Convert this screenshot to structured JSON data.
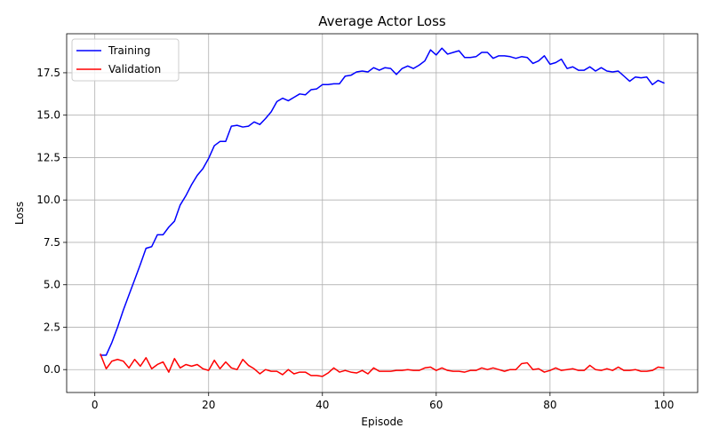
{
  "chart_data": {
    "type": "line",
    "title": "Average Actor Loss",
    "xlabel": "Episode",
    "ylabel": "Loss",
    "xlim": [
      -4.95,
      105.95
    ],
    "ylim": [
      -1.35,
      19.8
    ],
    "xticks": [
      0,
      20,
      40,
      60,
      80,
      100
    ],
    "yticks": [
      0.0,
      2.5,
      5.0,
      7.5,
      10.0,
      12.5,
      15.0,
      17.5
    ],
    "ytick_labels": [
      "0.0",
      "2.5",
      "5.0",
      "7.5",
      "10.0",
      "12.5",
      "15.0",
      "17.5"
    ],
    "grid": true,
    "legend_position": "top-left",
    "x": [
      1,
      2,
      3,
      4,
      5,
      6,
      7,
      8,
      9,
      10,
      11,
      12,
      13,
      14,
      15,
      16,
      17,
      18,
      19,
      20,
      21,
      22,
      23,
      24,
      25,
      26,
      27,
      28,
      29,
      30,
      31,
      32,
      33,
      34,
      35,
      36,
      37,
      38,
      39,
      40,
      41,
      42,
      43,
      44,
      45,
      46,
      47,
      48,
      49,
      50,
      51,
      52,
      53,
      54,
      55,
      56,
      57,
      58,
      59,
      60,
      61,
      62,
      63,
      64,
      65,
      66,
      67,
      68,
      69,
      70,
      71,
      72,
      73,
      74,
      75,
      76,
      77,
      78,
      79,
      80,
      81,
      82,
      83,
      84,
      85,
      86,
      87,
      88,
      89,
      90,
      91,
      92,
      93,
      94,
      95,
      96,
      97,
      98,
      99,
      100
    ],
    "series": [
      {
        "name": "Training",
        "color": "#0000ff",
        "values": [
          0.85,
          0.85,
          1.6,
          2.5,
          3.5,
          4.4,
          5.3,
          6.2,
          7.15,
          7.25,
          7.95,
          7.95,
          8.4,
          8.75,
          9.7,
          10.25,
          10.9,
          11.45,
          11.85,
          12.45,
          13.2,
          13.45,
          13.45,
          14.35,
          14.4,
          14.3,
          14.35,
          14.6,
          14.45,
          14.8,
          15.2,
          15.8,
          16.0,
          15.85,
          16.05,
          16.25,
          16.2,
          16.5,
          16.55,
          16.8,
          16.8,
          16.85,
          16.85,
          17.3,
          17.35,
          17.55,
          17.6,
          17.55,
          17.8,
          17.65,
          17.8,
          17.75,
          17.4,
          17.75,
          17.9,
          17.75,
          17.95,
          18.2,
          18.85,
          18.55,
          18.95,
          18.6,
          18.7,
          18.8,
          18.4,
          18.4,
          18.45,
          18.7,
          18.7,
          18.35,
          18.5,
          18.5,
          18.45,
          18.35,
          18.45,
          18.4,
          18.05,
          18.2,
          18.5,
          18.0,
          18.1,
          18.3,
          17.75,
          17.85,
          17.65,
          17.65,
          17.85,
          17.6,
          17.8,
          17.6,
          17.55,
          17.6,
          17.3,
          17.0,
          17.25,
          17.2,
          17.25,
          16.8,
          17.05,
          16.9
        ]
      },
      {
        "name": "Validation",
        "color": "#ff0000",
        "values": [
          0.9,
          0.05,
          0.5,
          0.6,
          0.5,
          0.1,
          0.6,
          0.2,
          0.7,
          0.05,
          0.3,
          0.45,
          -0.15,
          0.65,
          0.1,
          0.3,
          0.2,
          0.3,
          0.05,
          -0.05,
          0.55,
          0.05,
          0.45,
          0.1,
          0.0,
          0.6,
          0.25,
          0.05,
          -0.25,
          0.0,
          -0.1,
          -0.1,
          -0.3,
          0.0,
          -0.25,
          -0.15,
          -0.15,
          -0.35,
          -0.35,
          -0.4,
          -0.2,
          0.1,
          -0.15,
          -0.05,
          -0.15,
          -0.2,
          -0.05,
          -0.25,
          0.1,
          -0.1,
          -0.1,
          -0.1,
          -0.05,
          -0.05,
          0.0,
          -0.05,
          -0.05,
          0.1,
          0.15,
          -0.05,
          0.1,
          -0.05,
          -0.1,
          -0.1,
          -0.15,
          -0.05,
          -0.05,
          0.1,
          0.0,
          0.1,
          0.0,
          -0.1,
          0.0,
          0.0,
          0.35,
          0.4,
          0.0,
          0.05,
          -0.15,
          -0.05,
          0.1,
          -0.05,
          0.0,
          0.05,
          -0.05,
          -0.05,
          0.25,
          0.0,
          -0.05,
          0.05,
          -0.05,
          0.15,
          -0.05,
          -0.05,
          0.0,
          -0.1,
          -0.1,
          -0.05,
          0.15,
          0.1
        ]
      }
    ]
  }
}
